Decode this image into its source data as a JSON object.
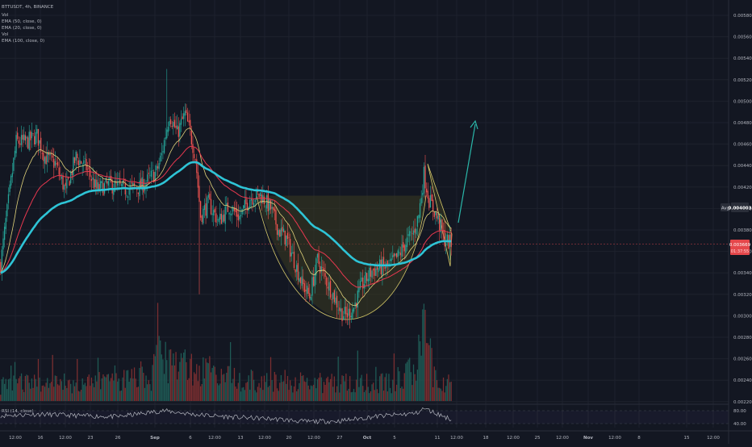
{
  "legend": {
    "symbol_line": "BTTUSDT, 4h, BINANCE",
    "indicators": [
      "Vol",
      "EMA (50, close, 0)",
      "EMA (20, close, 0)",
      "Vol",
      "EMA (100, close, 0)"
    ]
  },
  "rsi_label": "RSI (14, close)",
  "badges": {
    "avg_label": "Avg",
    "avg_value": "0.004003",
    "price_value": "0.003669",
    "price_countdown": "01:37:55"
  },
  "colors": {
    "background": "#131722",
    "grid": "#1e222d",
    "up": "#26a69a",
    "down": "#ef5350",
    "vol_up": "#1f5a55",
    "vol_down": "#7a2e30",
    "ema20": "#e0d27a",
    "ema50": "#e8384f",
    "ema100": "#2ec4d6",
    "pattern_fill": "#3a3a20",
    "pattern_stroke": "#d6c96a",
    "arrow": "#2ab7a9",
    "rsi": "#b2b5be",
    "text": "#b2b5be"
  },
  "chart_data": {
    "type": "candlestick",
    "y_axis_ticks": [
      "0.005800",
      "0.005600",
      "0.005400",
      "0.005200",
      "0.005000",
      "0.004800",
      "0.004600",
      "0.004400",
      "0.004200",
      "0.004000",
      "0.003800",
      "0.003600",
      "0.003400",
      "0.003200",
      "0.003000",
      "0.002800",
      "0.002600",
      "0.002400",
      "0.002200"
    ],
    "ylim": [
      0.0022,
      0.0059
    ],
    "x_axis_ticks": [
      "12:00",
      "16",
      "12:00",
      "23",
      "26",
      "Sep",
      "6",
      "12:00",
      "13",
      "12:00",
      "20",
      "12:00",
      "27",
      "Oct",
      "5",
      "11",
      "12:00",
      "18",
      "12:00",
      "25",
      "12:00",
      "Nov",
      "12:00",
      "8",
      "15",
      "12:00"
    ],
    "current_price": 0.003669,
    "avg_price": 0.004003,
    "price_anchors": [
      [
        0,
        0.00348
      ],
      [
        4,
        0.00388
      ],
      [
        12,
        0.00462
      ],
      [
        20,
        0.00462
      ],
      [
        28,
        0.00468
      ],
      [
        34,
        0.00448
      ],
      [
        42,
        0.00442
      ],
      [
        50,
        0.00416
      ],
      [
        58,
        0.00448
      ],
      [
        66,
        0.00438
      ],
      [
        74,
        0.00418
      ],
      [
        84,
        0.00422
      ],
      [
        96,
        0.00418
      ],
      [
        108,
        0.0042
      ],
      [
        120,
        0.00434
      ],
      [
        124,
        0.0045
      ],
      [
        130,
        0.00488
      ],
      [
        136,
        0.0047
      ],
      [
        142,
        0.00488
      ],
      [
        146,
        0.0047
      ],
      [
        150,
        0.00448
      ],
      [
        154,
        0.00393
      ],
      [
        160,
        0.00405
      ],
      [
        168,
        0.00388
      ],
      [
        176,
        0.00402
      ],
      [
        184,
        0.00392
      ],
      [
        192,
        0.0041
      ],
      [
        200,
        0.00413
      ],
      [
        208,
        0.004
      ],
      [
        214,
        0.0038
      ],
      [
        220,
        0.00372
      ],
      [
        226,
        0.00352
      ],
      [
        232,
        0.0033
      ],
      [
        238,
        0.00318
      ],
      [
        244,
        0.00352
      ],
      [
        250,
        0.00335
      ],
      [
        256,
        0.0032
      ],
      [
        262,
        0.00304
      ],
      [
        266,
        0.003
      ],
      [
        272,
        0.00308
      ],
      [
        278,
        0.00328
      ],
      [
        286,
        0.00342
      ],
      [
        292,
        0.00345
      ],
      [
        298,
        0.00345
      ],
      [
        306,
        0.00355
      ],
      [
        312,
        0.00368
      ],
      [
        318,
        0.00378
      ],
      [
        322,
        0.00394
      ],
      [
        326,
        0.00432
      ],
      [
        330,
        0.00408
      ],
      [
        334,
        0.00398
      ],
      [
        338,
        0.00385
      ],
      [
        342,
        0.00371
      ],
      [
        347,
        0.00367
      ]
    ],
    "volume_anchors": [
      [
        0,
        0.25
      ],
      [
        20,
        0.3
      ],
      [
        40,
        0.28
      ],
      [
        80,
        0.3
      ],
      [
        115,
        0.35
      ],
      [
        125,
        0.85
      ],
      [
        130,
        0.55
      ],
      [
        150,
        0.5
      ],
      [
        200,
        0.3
      ],
      [
        250,
        0.28
      ],
      [
        300,
        0.3
      ],
      [
        320,
        0.5
      ],
      [
        326,
        1.0
      ],
      [
        334,
        0.4
      ],
      [
        347,
        0.25
      ]
    ],
    "rsi_levels": [
      "80.00",
      "40.00"
    ],
    "rsi_anchors": [
      [
        0,
        0.55
      ],
      [
        30,
        0.62
      ],
      [
        60,
        0.55
      ],
      [
        90,
        0.5
      ],
      [
        125,
        0.78
      ],
      [
        150,
        0.6
      ],
      [
        180,
        0.48
      ],
      [
        210,
        0.4
      ],
      [
        235,
        0.28
      ],
      [
        260,
        0.3
      ],
      [
        290,
        0.52
      ],
      [
        320,
        0.66
      ],
      [
        326,
        0.88
      ],
      [
        347,
        0.38
      ]
    ]
  }
}
